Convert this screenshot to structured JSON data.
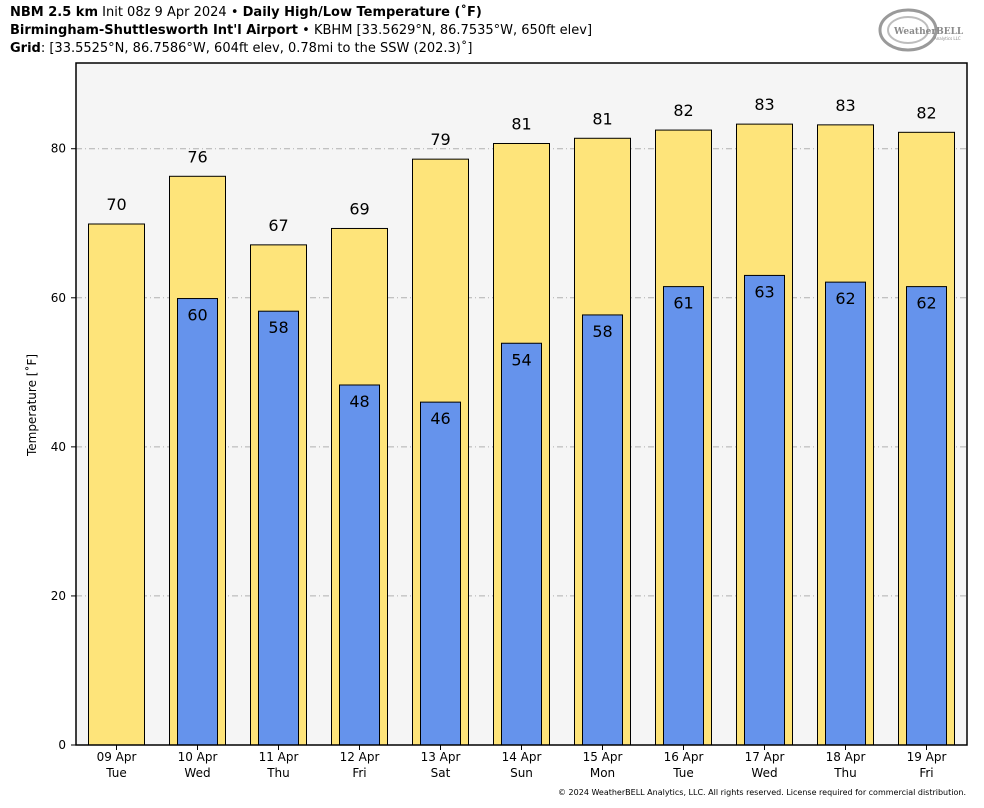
{
  "header": {
    "line1_model": "NBM 2.5 km",
    "line1_init": "Init 08z 9 Apr 2024",
    "line1_sep": "•",
    "line1_title": "Daily High/Low Temperature (˚F)",
    "line2_site": "Birmingham-Shuttlesworth Int'l Airport",
    "line2_sep": "•",
    "line2_info": "KBHM [33.5629°N, 86.7535°W, 650ft elev]",
    "line3_label": "Grid",
    "line3_info": ": [33.5525°N, 86.7586°W, 604ft elev, 0.78mi to the SSW (202.3)˚]"
  },
  "logo": {
    "text": "WeatherBELL",
    "sub": "Analytics LLC"
  },
  "copyright": "© 2024 WeatherBELL Analytics, LLC. All rights reserved. License required for commercial distribution.",
  "colors": {
    "high": "#fee47a",
    "low": "#6593ec",
    "plot_bg": "#f5f5f5",
    "grid": "#b0b0b0"
  },
  "chart_data": {
    "type": "bar",
    "ylabel": "Temperature [˚F]",
    "ylim": [
      0,
      91.5
    ],
    "yticks": [
      0,
      20,
      40,
      60,
      80
    ],
    "grid": true,
    "categories": [
      {
        "date": "09 Apr",
        "day": "Tue"
      },
      {
        "date": "10 Apr",
        "day": "Wed"
      },
      {
        "date": "11 Apr",
        "day": "Thu"
      },
      {
        "date": "12 Apr",
        "day": "Fri"
      },
      {
        "date": "13 Apr",
        "day": "Sat"
      },
      {
        "date": "14 Apr",
        "day": "Sun"
      },
      {
        "date": "15 Apr",
        "day": "Mon"
      },
      {
        "date": "16 Apr",
        "day": "Tue"
      },
      {
        "date": "17 Apr",
        "day": "Wed"
      },
      {
        "date": "18 Apr",
        "day": "Thu"
      },
      {
        "date": "19 Apr",
        "day": "Fri"
      }
    ],
    "series": [
      {
        "key": "high",
        "values": [
          69.9,
          76.3,
          67.1,
          69.3,
          78.6,
          80.7,
          81.4,
          82.5,
          83.3,
          83.2,
          82.2
        ],
        "labels": [
          "70",
          "76",
          "67",
          "69",
          "79",
          "81",
          "81",
          "82",
          "83",
          "83",
          "82"
        ]
      },
      {
        "key": "low",
        "values": [
          null,
          59.9,
          58.2,
          48.3,
          46.0,
          53.9,
          57.7,
          61.5,
          63.0,
          62.1,
          61.5
        ],
        "labels": [
          "",
          "60",
          "58",
          "48",
          "46",
          "54",
          "58",
          "61",
          "63",
          "62",
          "62"
        ]
      }
    ]
  }
}
